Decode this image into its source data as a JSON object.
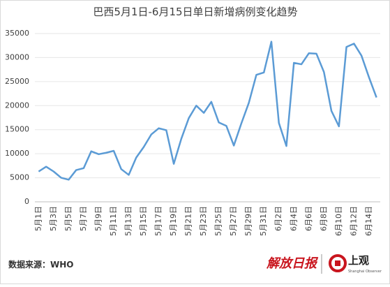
{
  "chart_data": {
    "type": "line",
    "title": "巴西5月1日-6月15日单日新增病例变化趋势",
    "categories": [
      "5月1日",
      null,
      "5月3日",
      null,
      "5月5日",
      null,
      "5月7日",
      null,
      "5月9日",
      null,
      "5月11日",
      null,
      "5月13日",
      null,
      "5月15日",
      null,
      "5月17日",
      null,
      "5月19日",
      null,
      "5月21日",
      null,
      "5月23日",
      null,
      "5月25日",
      null,
      "5月27日",
      null,
      "5月29日",
      null,
      "5月31日",
      null,
      "6月2日",
      null,
      "6月4日",
      null,
      "6月6日",
      null,
      "6月8日",
      null,
      "6月10日",
      null,
      "6月12日",
      null,
      "6月14日",
      null
    ],
    "series": [
      {
        "name": "单日新增病例",
        "color": "#5b9bd5",
        "values": [
          6300,
          7300,
          6300,
          5000,
          4600,
          6600,
          7000,
          10500,
          9900,
          10200,
          10600,
          6800,
          5600,
          9200,
          11400,
          14000,
          15300,
          14900,
          7900,
          13100,
          17400,
          20000,
          18500,
          20800,
          16500,
          15800,
          11700,
          16300,
          20600,
          26400,
          26900,
          33300,
          16400,
          11600,
          28900,
          28600,
          30900,
          30800,
          27000,
          18900,
          15700,
          32200,
          32900,
          30400,
          25900,
          21700
        ]
      }
    ],
    "ylim": [
      0,
      35000
    ],
    "yticks": [
      0,
      5000,
      10000,
      15000,
      20000,
      25000,
      30000,
      35000
    ],
    "grid": true,
    "source": "数据来源：WHO",
    "logo_left": "解放日报",
    "logo_right": "上观",
    "logo_right_sub": "Shanghai Observer"
  }
}
